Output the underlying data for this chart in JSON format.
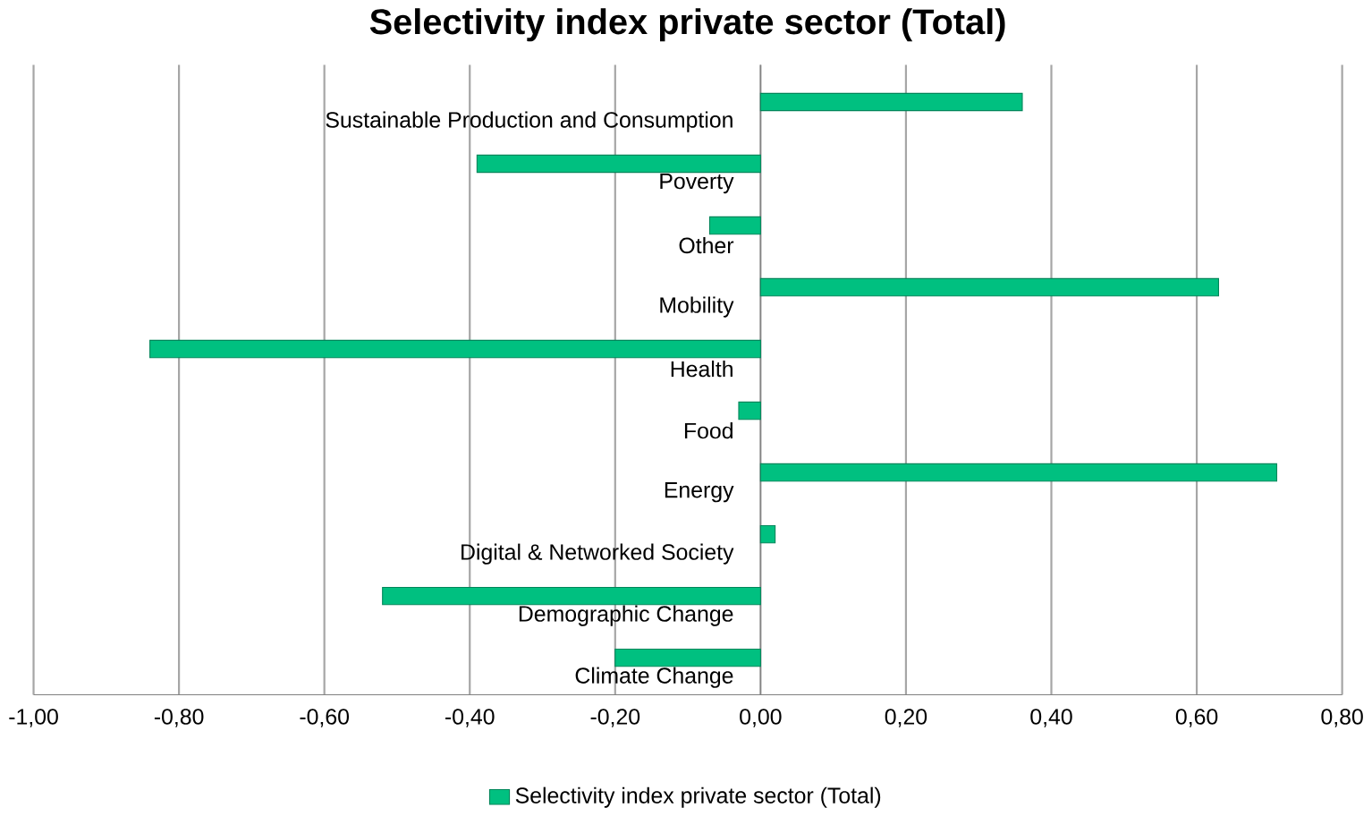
{
  "chart_data": {
    "type": "bar",
    "orientation": "horizontal",
    "title": "Selectivity index private sector (Total)",
    "categories": [
      "Sustainable Production and Consumption",
      "Poverty",
      "Other",
      "Mobility",
      "Health",
      "Food",
      "Energy",
      "Digital & Networked Society",
      "Demographic Change",
      "Climate Change"
    ],
    "series": [
      {
        "name": "Selectivity index private sector (Total)",
        "color": "#00c080",
        "values": [
          0.36,
          -0.39,
          -0.07,
          0.63,
          -0.84,
          -0.03,
          0.71,
          0.02,
          -0.52,
          -0.2
        ]
      }
    ],
    "xlim": [
      -1.0,
      0.8
    ],
    "xticks": [
      {
        "value": -1.0,
        "label": "-1,00"
      },
      {
        "value": -0.8,
        "label": "-0,80"
      },
      {
        "value": -0.6,
        "label": "-0,60"
      },
      {
        "value": -0.4,
        "label": "-0,40"
      },
      {
        "value": -0.2,
        "label": "-0,20"
      },
      {
        "value": 0,
        "label": "0,00"
      },
      {
        "value": 0.2,
        "label": "0,20"
      },
      {
        "value": 0.4,
        "label": "0,40"
      },
      {
        "value": 0.6,
        "label": "0,60"
      },
      {
        "value": 0.8,
        "label": "0,80"
      }
    ],
    "grid": "x",
    "legend": "bottom"
  }
}
